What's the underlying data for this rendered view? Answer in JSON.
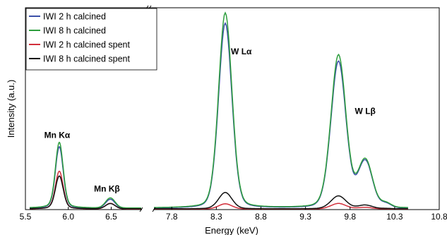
{
  "chart_data": {
    "type": "line",
    "xlabel": "Energy (keV)",
    "ylabel": "Intensity (a.u.)",
    "axis_break": [
      6.85,
      7.6
    ],
    "xticks_left": [
      "5.5",
      "6.0",
      "6.5"
    ],
    "xticks_right": [
      "7.8",
      "8.3",
      "8.8",
      "9.3",
      "9.8",
      "10.3",
      "10.8"
    ],
    "xlim_left": [
      5.5,
      6.85
    ],
    "xlim_right": [
      7.6,
      10.8
    ],
    "ylim": [
      0,
      100
    ],
    "grid": false,
    "legend_position": "top-left",
    "annotations": [
      {
        "text": "Mn Kα",
        "x": 5.87,
        "y": 36
      },
      {
        "text": "Mn Kβ",
        "x": 6.45,
        "y": 9
      },
      {
        "text": "W Lα",
        "x": 8.58,
        "y": 78
      },
      {
        "text": "W Lβ",
        "x": 9.97,
        "y": 48
      }
    ],
    "series": [
      {
        "name": "IWI 2 h calcined",
        "color": "#3b4fa8",
        "peaks": {
          "mn_ka": 31,
          "mn_kb": 4.5,
          "w_la": 93,
          "w_lb": 74,
          "w_lb_shoulder": 23,
          "base": 0.6
        }
      },
      {
        "name": "IWI 8 h calcined",
        "color": "#2e9e3e",
        "peaks": {
          "mn_ka": 33,
          "mn_kb": 5,
          "w_la": 98,
          "w_lb": 77,
          "w_lb_shoulder": 23.5,
          "base": 0.8
        }
      },
      {
        "name": "IWI 2 h calcined spent",
        "color": "#d22f3b",
        "peaks": {
          "mn_ka": 19,
          "mn_kb": 2.8,
          "w_la": 2.6,
          "w_lb": 2.8,
          "w_lb_shoulder": 0.8,
          "base": 0.3
        }
      },
      {
        "name": "IWI 8 h calcined spent",
        "color": "#111111",
        "peaks": {
          "mn_ka": 16.5,
          "mn_kb": 2.6,
          "w_la": 8.2,
          "w_lb": 6.5,
          "w_lb_shoulder": 1.8,
          "base": 0.4
        }
      }
    ]
  }
}
